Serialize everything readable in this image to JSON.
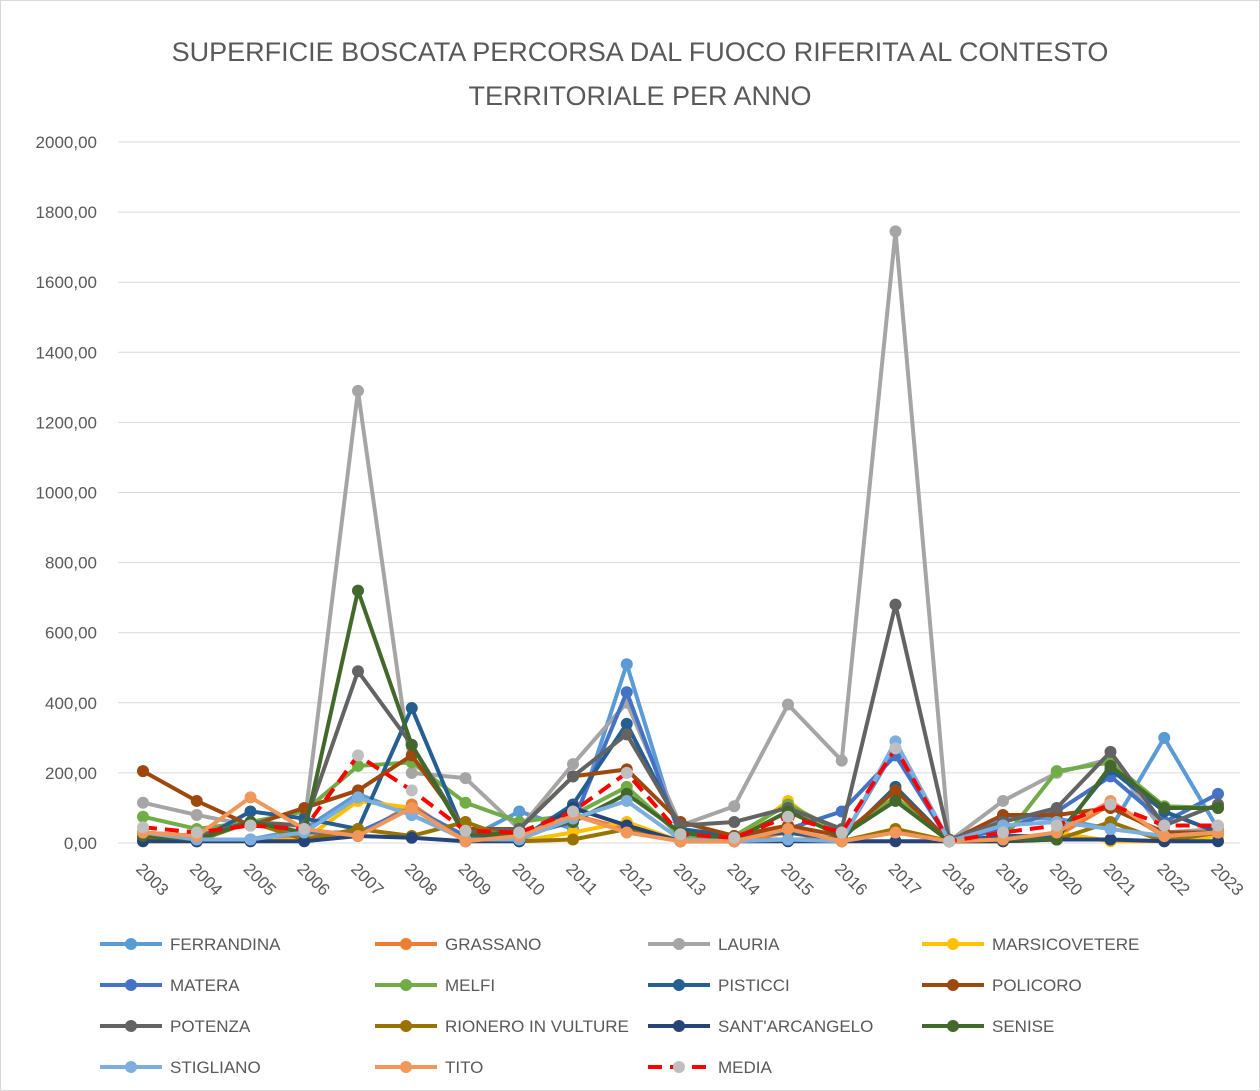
{
  "chart_data": {
    "type": "line",
    "title": "SUPERFICIE BOSCATA PERCORSA DAL FUOCO RIFERITA AL CONTESTO TERRITORIALE PER ANNO",
    "categories": [
      "2003",
      "2004",
      "2005",
      "2006",
      "2007",
      "2008",
      "2009",
      "2010",
      "2011",
      "2012",
      "2013",
      "2014",
      "2015",
      "2016",
      "2017",
      "2018",
      "2019",
      "2020",
      "2021",
      "2022",
      "2023"
    ],
    "ylim": [
      0,
      2000
    ],
    "yticks": [
      {
        "value": 0,
        "label": "0,00"
      },
      {
        "value": 200,
        "label": "200,00"
      },
      {
        "value": 400,
        "label": "400,00"
      },
      {
        "value": 600,
        "label": "600,00"
      },
      {
        "value": 800,
        "label": "800,00"
      },
      {
        "value": 1000,
        "label": "1000,00"
      },
      {
        "value": 1200,
        "label": "1200,00"
      },
      {
        "value": 1400,
        "label": "1400,00"
      },
      {
        "value": 1600,
        "label": "1600,00"
      },
      {
        "value": 1800,
        "label": "1800,00"
      },
      {
        "value": 2000,
        "label": "2000,00"
      }
    ],
    "grid": true,
    "legend": "bottom",
    "series": [
      {
        "name": "FERRANDINA",
        "color": "#5b9bd5",
        "values": [
          20,
          10,
          10,
          40,
          140,
          80,
          10,
          90,
          40,
          510,
          10,
          10,
          10,
          10,
          270,
          5,
          70,
          70,
          40,
          300,
          40
        ]
      },
      {
        "name": "GRASSANO",
        "color": "#ed7d31",
        "values": [
          20,
          10,
          10,
          20,
          20,
          110,
          5,
          20,
          80,
          40,
          5,
          5,
          30,
          5,
          30,
          5,
          5,
          20,
          110,
          20,
          20
        ]
      },
      {
        "name": "LAURIA",
        "color": "#a5a5a5",
        "values": [
          115,
          80,
          50,
          50,
          1290,
          200,
          185,
          40,
          225,
          400,
          50,
          105,
          395,
          235,
          1745,
          5,
          120,
          200,
          240,
          30,
          40
        ]
      },
      {
        "name": "MARSICOVETERE",
        "color": "#ffc000",
        "values": [
          5,
          5,
          5,
          10,
          120,
          100,
          10,
          5,
          30,
          60,
          5,
          5,
          120,
          5,
          40,
          5,
          5,
          30,
          5,
          5,
          20
        ]
      },
      {
        "name": "MATERA",
        "color": "#4472c4",
        "values": [
          10,
          10,
          10,
          30,
          30,
          100,
          20,
          20,
          60,
          430,
          20,
          10,
          40,
          90,
          250,
          5,
          40,
          90,
          190,
          60,
          140
        ]
      },
      {
        "name": "MELFI",
        "color": "#70ad47",
        "values": [
          75,
          40,
          60,
          90,
          220,
          230,
          115,
          60,
          80,
          160,
          20,
          20,
          110,
          30,
          130,
          5,
          10,
          205,
          230,
          105,
          100
        ]
      },
      {
        "name": "PISTICCI",
        "color": "#255e91",
        "values": [
          10,
          5,
          90,
          70,
          40,
          385,
          20,
          10,
          110,
          340,
          40,
          20,
          30,
          10,
          160,
          5,
          20,
          20,
          210,
          90,
          30
        ]
      },
      {
        "name": "POLICORO",
        "color": "#9e480e",
        "values": [
          205,
          120,
          50,
          100,
          150,
          250,
          40,
          40,
          190,
          210,
          60,
          20,
          50,
          20,
          150,
          5,
          80,
          80,
          100,
          30,
          30
        ]
      },
      {
        "name": "POTENZA",
        "color": "#636363",
        "values": [
          30,
          20,
          60,
          50,
          490,
          280,
          30,
          40,
          190,
          310,
          50,
          60,
          100,
          40,
          680,
          10,
          60,
          100,
          260,
          50,
          110
        ]
      },
      {
        "name": "RIONERO IN VULTURE",
        "color": "#997300",
        "values": [
          10,
          5,
          60,
          10,
          40,
          20,
          60,
          5,
          10,
          40,
          5,
          5,
          10,
          5,
          40,
          5,
          5,
          10,
          60,
          5,
          30
        ]
      },
      {
        "name": "SANT'ARCANGELO",
        "color": "#264478",
        "values": [
          5,
          5,
          5,
          5,
          20,
          15,
          5,
          5,
          100,
          50,
          5,
          5,
          5,
          5,
          5,
          5,
          5,
          10,
          10,
          5,
          5
        ]
      },
      {
        "name": "SENISE",
        "color": "#43682b",
        "values": [
          20,
          10,
          60,
          30,
          720,
          280,
          20,
          30,
          60,
          140,
          30,
          10,
          90,
          20,
          120,
          5,
          10,
          10,
          220,
          100,
          100
        ]
      },
      {
        "name": "STIGLIANO",
        "color": "#7cafdd",
        "values": [
          30,
          10,
          10,
          30,
          130,
          80,
          10,
          10,
          70,
          120,
          10,
          5,
          10,
          5,
          290,
          5,
          50,
          60,
          40,
          20,
          30
        ]
      },
      {
        "name": "TITO",
        "color": "#f1975a",
        "values": [
          30,
          20,
          130,
          40,
          20,
          100,
          5,
          20,
          80,
          30,
          5,
          5,
          40,
          5,
          30,
          5,
          10,
          30,
          120,
          20,
          30
        ]
      },
      {
        "name": "MEDIA",
        "color": "#ff0000",
        "marker_color": "#bfbfbf",
        "dashed": true,
        "values": [
          45,
          30,
          50,
          40,
          250,
          150,
          35,
          30,
          90,
          200,
          25,
          15,
          75,
          30,
          270,
          5,
          30,
          50,
          110,
          50,
          50
        ]
      }
    ]
  }
}
